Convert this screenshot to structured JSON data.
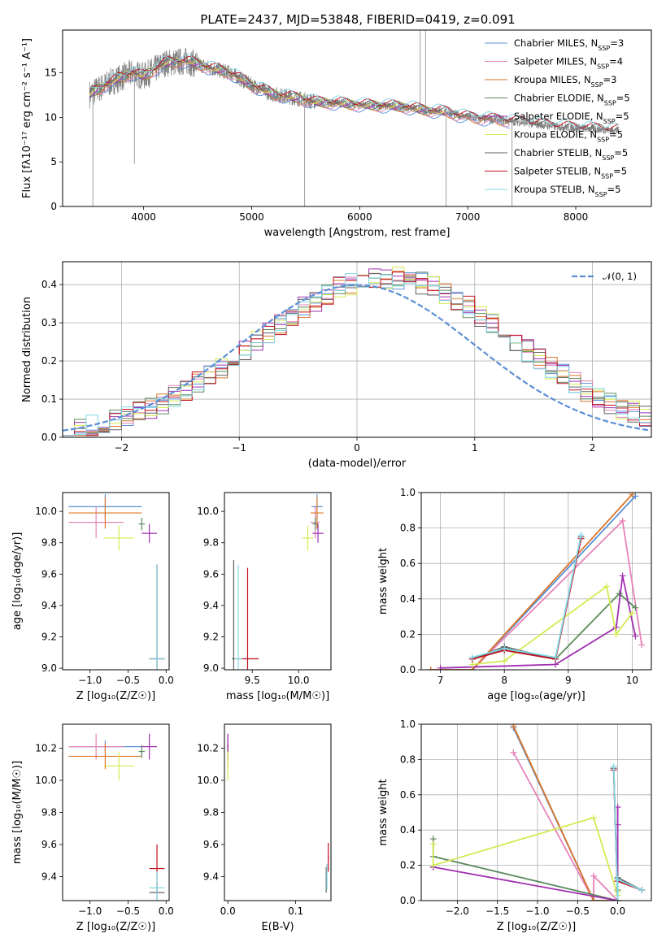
{
  "figure_title": "PLATE=2437, MJD=53848, FIBERID=0419, z=0.091",
  "colors": {
    "chabrier_miles": "#5b8fd6",
    "salpeter_miles": "#e683b9",
    "kroupa_miles": "#d9762a",
    "chabrier_elodie": "#5c8a5e",
    "salpeter_elodie": "#a030b0",
    "kroupa_elodie": "#d4ea52",
    "chabrier_stelib": "#606060",
    "salpeter_stelib": "#c01020",
    "kroupa_stelib": "#80d8e6",
    "normal": "#5b8fd6"
  },
  "chart_data": [
    {
      "id": "spectrum",
      "type": "line",
      "xlabel": "wavelength [Angstrom, rest frame]",
      "ylabel": "Flux [fλ10⁻¹⁷ erg cm⁻² s⁻¹ A⁻¹]",
      "xlim": [
        3250,
        8700
      ],
      "ylim": [
        0,
        19.8
      ],
      "xticks": [
        4000,
        5000,
        6000,
        7000,
        8000
      ],
      "yticks": [
        0,
        5,
        10,
        15
      ],
      "grid": false,
      "legend_position": "top-right",
      "continuum": {
        "x": [
          3500,
          3700,
          3900,
          4000,
          4200,
          4400,
          4600,
          4800,
          5000,
          5200,
          5400,
          5600,
          5800,
          6000,
          6200,
          6400,
          6600,
          6800,
          7000,
          7200,
          7400,
          7600,
          7800,
          8000,
          8200,
          8400
        ],
        "y": [
          12.6,
          14.0,
          15.0,
          14.6,
          16.1,
          16.3,
          15.6,
          15.0,
          13.6,
          12.6,
          12.2,
          11.7,
          11.6,
          11.4,
          11.3,
          11.2,
          10.8,
          10.6,
          10.0,
          9.8,
          9.6,
          9.3,
          9.0,
          8.8,
          8.7,
          8.5
        ]
      },
      "series": [
        {
          "name": "Chabrier MILES, N",
          "sub": "SSP",
          "suffix": "=3",
          "color_key": "chabrier_miles",
          "xmax": 7400
        },
        {
          "name": "Salpeter MILES, N",
          "sub": "SSP",
          "suffix": "=4",
          "color_key": "salpeter_miles",
          "xmax": 7400
        },
        {
          "name": "Kroupa MILES, N",
          "sub": "SSP",
          "suffix": "=3",
          "color_key": "kroupa_miles",
          "xmax": 7400
        },
        {
          "name": "Chabrier ELODIE, N",
          "sub": "SSP",
          "suffix": "=5",
          "color_key": "chabrier_elodie",
          "xmax": 6800
        },
        {
          "name": "Salpeter ELODIE, N",
          "sub": "SSP",
          "suffix": "=5",
          "color_key": "salpeter_elodie",
          "xmax": 6800
        },
        {
          "name": "Kroupa ELODIE, N",
          "sub": "SSP",
          "suffix": "=5",
          "color_key": "kroupa_elodie",
          "xmax": 6800
        },
        {
          "name": "Chabrier STELIB, N",
          "sub": "SSP",
          "suffix": "=5",
          "color_key": "chabrier_stelib",
          "xmax": 8400
        },
        {
          "name": "Salpeter STELIB, N",
          "sub": "SSP",
          "suffix": "=5",
          "color_key": "salpeter_stelib",
          "xmax": 8400
        },
        {
          "name": "Kroupa STELIB, N",
          "sub": "SSP",
          "suffix": "=5",
          "color_key": "kroupa_stelib",
          "xmax": 8400
        }
      ]
    },
    {
      "id": "residuals",
      "type": "histogram",
      "xlabel": "(data-model)/error",
      "ylabel": "Normed distribution",
      "xlim": [
        -2.5,
        2.5
      ],
      "ylim": [
        0,
        0.46
      ],
      "xticks": [
        -2,
        -1,
        0,
        1,
        2
      ],
      "yticks": [
        0.0,
        0.1,
        0.2,
        0.3,
        0.4
      ],
      "grid": true,
      "legend_position": "top-right",
      "legend": "𝒩(0, 1)",
      "bin_width": 0.1
    },
    {
      "id": "age_vs_Z",
      "type": "errorbar",
      "xlabel": "Z [log₁₀(Z/Z☉)]",
      "ylabel": "age  [log₁₀(age/yr)]",
      "xlim": [
        -1.36,
        0.04
      ],
      "ylim": [
        8.99,
        10.12
      ],
      "xticks": [
        -1.0,
        -0.5,
        0.0
      ],
      "yticks": [
        9.0,
        9.2,
        9.4,
        9.6,
        9.8,
        10.0
      ],
      "grid": false,
      "points": [
        {
          "color_key": "chabrier_miles",
          "x": -0.8,
          "xerr": 0.48,
          "y": 10.03,
          "yerr": 0.08
        },
        {
          "color_key": "salpeter_miles",
          "x": -0.92,
          "xerr": 0.36,
          "y": 9.93,
          "yerr": 0.1
        },
        {
          "color_key": "kroupa_miles",
          "x": -0.8,
          "xerr": 0.48,
          "y": 9.99,
          "yerr": 0.1
        },
        {
          "color_key": "chabrier_elodie",
          "x": -0.32,
          "xerr": 0.04,
          "y": 9.92,
          "yerr": 0.04
        },
        {
          "color_key": "salpeter_elodie",
          "x": -0.22,
          "xerr": 0.1,
          "y": 9.86,
          "yerr": 0.06
        },
        {
          "color_key": "kroupa_elodie",
          "x": -0.62,
          "xerr": 0.2,
          "y": 9.83,
          "yerr": 0.08
        },
        {
          "color_key": "chabrier_stelib",
          "x": -0.12,
          "xerr": 0.1,
          "y": 9.06,
          "yerr": 0.6
        },
        {
          "color_key": "salpeter_stelib",
          "x": -0.12,
          "xerr": 0.1,
          "y": 9.06,
          "yerr": 0.6
        },
        {
          "color_key": "kroupa_stelib",
          "x": -0.12,
          "xerr": 0.1,
          "y": 9.06,
          "yerr": 0.6
        }
      ]
    },
    {
      "id": "age_vs_mass",
      "type": "errorbar",
      "xlabel": "mass [log₁₀(M/M☉)]",
      "ylabel": "",
      "xlim": [
        9.2,
        10.35
      ],
      "ylim": [
        8.99,
        10.12
      ],
      "xticks": [
        9.5,
        10.0
      ],
      "yticks": [
        9.0,
        9.2,
        9.4,
        9.6,
        9.8,
        10.0
      ],
      "grid": false,
      "points": [
        {
          "color_key": "chabrier_miles",
          "x": 10.2,
          "xerr": 0.06,
          "y": 10.03,
          "yerr": 0.08
        },
        {
          "color_key": "salpeter_miles",
          "x": 10.18,
          "xerr": 0.05,
          "y": 9.93,
          "yerr": 0.1
        },
        {
          "color_key": "kroupa_miles",
          "x": 10.2,
          "xerr": 0.07,
          "y": 9.99,
          "yerr": 0.1
        },
        {
          "color_key": "chabrier_elodie",
          "x": 10.18,
          "xerr": 0.03,
          "y": 9.92,
          "yerr": 0.04
        },
        {
          "color_key": "salpeter_elodie",
          "x": 10.21,
          "xerr": 0.06,
          "y": 9.86,
          "yerr": 0.06
        },
        {
          "color_key": "kroupa_elodie",
          "x": 10.1,
          "xerr": 0.06,
          "y": 9.83,
          "yerr": 0.08
        },
        {
          "color_key": "chabrier_stelib",
          "x": 9.3,
          "xerr": 0.02,
          "y": 9.06,
          "yerr": 0.63
        },
        {
          "color_key": "salpeter_stelib",
          "x": 9.45,
          "xerr": 0.12,
          "y": 9.06,
          "yerr": 0.58
        },
        {
          "color_key": "kroupa_stelib",
          "x": 9.35,
          "xerr": 0.04,
          "y": 9.06,
          "yerr": 0.6
        }
      ]
    },
    {
      "id": "weight_vs_age",
      "type": "line",
      "xlabel": "age  [log₁₀(age/yr)]",
      "ylabel": "mass weight",
      "xlim": [
        6.7,
        10.3
      ],
      "ylim": [
        0,
        1.0
      ],
      "xticks": [
        7,
        8,
        9,
        10
      ],
      "yticks": [
        0.0,
        0.2,
        0.4,
        0.6,
        0.8,
        1.0
      ],
      "grid": true,
      "series": [
        {
          "color_key": "chabrier_miles",
          "x": [
            6.85,
            7.5,
            10.05
          ],
          "y": [
            0.0,
            0.0,
            0.98
          ]
        },
        {
          "color_key": "salpeter_miles",
          "x": [
            6.85,
            7.5,
            9.85,
            10.15
          ],
          "y": [
            0.0,
            0.0,
            0.84,
            0.14
          ]
        },
        {
          "color_key": "kroupa_miles",
          "x": [
            6.85,
            7.5,
            10.0
          ],
          "y": [
            0.0,
            0.0,
            0.99
          ]
        },
        {
          "color_key": "chabrier_elodie",
          "x": [
            7.5,
            8.0,
            8.8,
            9.8,
            10.05
          ],
          "y": [
            0.06,
            0.12,
            0.06,
            0.43,
            0.35
          ]
        },
        {
          "color_key": "salpeter_elodie",
          "x": [
            7.0,
            8.8,
            9.75,
            9.85,
            10.05
          ],
          "y": [
            0.01,
            0.03,
            0.24,
            0.53,
            0.19
          ]
        },
        {
          "color_key": "kroupa_elodie",
          "x": [
            7.5,
            8.0,
            9.6,
            9.75,
            10.0
          ],
          "y": [
            0.03,
            0.05,
            0.47,
            0.2,
            0.32
          ]
        },
        {
          "color_key": "chabrier_stelib",
          "x": [
            7.5,
            8.0,
            8.8,
            9.2
          ],
          "y": [
            0.06,
            0.13,
            0.06,
            0.75
          ]
        },
        {
          "color_key": "salpeter_stelib",
          "x": [
            7.5,
            8.0,
            8.8,
            9.2
          ],
          "y": [
            0.06,
            0.11,
            0.06,
            0.74
          ]
        },
        {
          "color_key": "kroupa_stelib",
          "x": [
            7.5,
            8.0,
            8.8,
            9.2
          ],
          "y": [
            0.07,
            0.12,
            0.07,
            0.76
          ]
        }
      ]
    },
    {
      "id": "mass_vs_Z",
      "type": "errorbar",
      "xlabel": "Z [log₁₀(Z/Z☉)]",
      "ylabel": "mass [log₁₀(M/M☉)]",
      "xlim": [
        -1.36,
        0.04
      ],
      "ylim": [
        9.25,
        10.35
      ],
      "xticks": [
        -1.0,
        -0.5,
        0.0
      ],
      "yticks": [
        9.4,
        9.6,
        9.8,
        10.0,
        10.2
      ],
      "grid": false,
      "points": [
        {
          "color_key": "chabrier_miles",
          "x": -0.8,
          "xerr": 0.48,
          "y": 10.21,
          "yerr": 0.04
        },
        {
          "color_key": "salpeter_miles",
          "x": -0.92,
          "xerr": 0.36,
          "y": 10.21,
          "yerr": 0.08
        },
        {
          "color_key": "kroupa_miles",
          "x": -0.8,
          "xerr": 0.48,
          "y": 10.15,
          "yerr": 0.08
        },
        {
          "color_key": "chabrier_elodie",
          "x": -0.32,
          "xerr": 0.04,
          "y": 10.18,
          "yerr": 0.04
        },
        {
          "color_key": "salpeter_elodie",
          "x": -0.22,
          "xerr": 0.1,
          "y": 10.21,
          "yerr": 0.08
        },
        {
          "color_key": "kroupa_elodie",
          "x": -0.62,
          "xerr": 0.2,
          "y": 10.09,
          "yerr": 0.09
        },
        {
          "color_key": "chabrier_stelib",
          "x": -0.12,
          "xerr": 0.1,
          "y": 9.3,
          "yerr": 0.06
        },
        {
          "color_key": "salpeter_stelib",
          "x": -0.12,
          "xerr": 0.1,
          "y": 9.45,
          "yerr": 0.15
        },
        {
          "color_key": "kroupa_stelib",
          "x": -0.12,
          "xerr": 0.1,
          "y": 9.33,
          "yerr": 0.1
        }
      ]
    },
    {
      "id": "mass_vs_ebv",
      "type": "errorbar",
      "xlabel": "E(B-V)",
      "ylabel": "",
      "xlim": [
        -0.005,
        0.152
      ],
      "ylim": [
        9.25,
        10.35
      ],
      "xticks": [
        0.0,
        0.1
      ],
      "yticks": [
        9.4,
        9.6,
        9.8,
        10.0,
        10.2
      ],
      "grid": false,
      "points": [
        {
          "color_key": "chabrier_miles",
          "x": 0.0,
          "xerr": 0.001,
          "y": 10.21,
          "yerr": 0.04
        },
        {
          "color_key": "salpeter_miles",
          "x": 0.0,
          "xerr": 0.001,
          "y": 10.21,
          "yerr": 0.08
        },
        {
          "color_key": "kroupa_miles",
          "x": 0.0,
          "xerr": 0.001,
          "y": 10.15,
          "yerr": 0.08
        },
        {
          "color_key": "chabrier_elodie",
          "x": 0.0,
          "xerr": 0.001,
          "y": 10.18,
          "yerr": 0.04
        },
        {
          "color_key": "salpeter_elodie",
          "x": 0.0,
          "xerr": 0.001,
          "y": 10.21,
          "yerr": 0.08
        },
        {
          "color_key": "kroupa_elodie",
          "x": 0.0,
          "xerr": 0.001,
          "y": 10.09,
          "yerr": 0.09
        },
        {
          "color_key": "chabrier_stelib",
          "x": 0.145,
          "xerr": 0.001,
          "y": 9.38,
          "yerr": 0.08
        },
        {
          "color_key": "salpeter_stelib",
          "x": 0.148,
          "xerr": 0.001,
          "y": 9.52,
          "yerr": 0.09
        },
        {
          "color_key": "kroupa_stelib",
          "x": 0.146,
          "xerr": 0.001,
          "y": 9.4,
          "yerr": 0.08
        }
      ]
    },
    {
      "id": "weight_vs_Z",
      "type": "line",
      "xlabel": "Z [log₁₀(Z/Z☉)]",
      "ylabel": "mass weight",
      "xlim": [
        -2.45,
        0.42
      ],
      "ylim": [
        0,
        1.0
      ],
      "xticks": [
        -2.0,
        -1.5,
        -1.0,
        -0.5,
        0.0
      ],
      "yticks": [
        0.0,
        0.2,
        0.4,
        0.6,
        0.8,
        1.0
      ],
      "grid": true,
      "series": [
        {
          "color_key": "chabrier_miles",
          "x": [
            -1.3,
            -0.3,
            -0.3,
            0.0
          ],
          "y": [
            0.98,
            0.0,
            0.0,
            0.0
          ]
        },
        {
          "color_key": "salpeter_miles",
          "x": [
            -1.3,
            -0.3,
            -0.3,
            0.0
          ],
          "y": [
            0.84,
            0.0,
            0.14,
            0.0
          ]
        },
        {
          "color_key": "kroupa_miles",
          "x": [
            -1.3,
            -0.3,
            -0.3,
            0.0
          ],
          "y": [
            0.99,
            0.0,
            0.0,
            0.0
          ]
        },
        {
          "color_key": "chabrier_elodie",
          "x": [
            -2.3,
            -2.3,
            0.0,
            0.0,
            0.0
          ],
          "y": [
            0.35,
            0.25,
            0.0,
            0.12,
            0.06
          ]
        },
        {
          "color_key": "salpeter_elodie",
          "x": [
            -2.3,
            -2.3,
            0.0,
            0.0,
            0.0
          ],
          "y": [
            0.19,
            0.19,
            0.0,
            0.53,
            0.43
          ]
        },
        {
          "color_key": "kroupa_elodie",
          "x": [
            -2.3,
            -2.3,
            -0.3,
            0.0,
            0.0
          ],
          "y": [
            0.32,
            0.2,
            0.47,
            0.03,
            0.05
          ]
        },
        {
          "color_key": "chabrier_stelib",
          "x": [
            -0.05,
            0.0,
            0.0,
            0.3
          ],
          "y": [
            0.75,
            0.0,
            0.13,
            0.06
          ]
        },
        {
          "color_key": "salpeter_stelib",
          "x": [
            -0.05,
            0.0,
            0.0,
            0.3
          ],
          "y": [
            0.74,
            0.0,
            0.11,
            0.06
          ]
        },
        {
          "color_key": "kroupa_stelib",
          "x": [
            -0.05,
            0.0,
            0.0,
            0.3
          ],
          "y": [
            0.76,
            0.0,
            0.12,
            0.06
          ]
        }
      ]
    }
  ]
}
